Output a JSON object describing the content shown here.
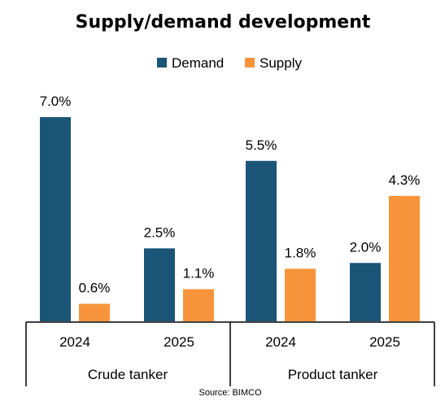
{
  "chart_data": {
    "type": "bar",
    "title": "Supply/demand development",
    "source": "Source: BIMCO",
    "groups": [
      {
        "label": "Crude tanker",
        "categories": [
          "2024",
          "2025"
        ]
      },
      {
        "label": "Product tanker",
        "categories": [
          "2024",
          "2025"
        ]
      }
    ],
    "series": [
      {
        "name": "Demand",
        "color": "#1b5577",
        "values": [
          7.0,
          2.5,
          5.5,
          2.0
        ],
        "labels": [
          "7.0%",
          "2.5%",
          "5.5%",
          "2.0%"
        ]
      },
      {
        "name": "Supply",
        "color": "#f7943b",
        "values": [
          0.6,
          1.1,
          1.8,
          4.3
        ],
        "labels": [
          "0.6%",
          "1.1%",
          "1.8%",
          "4.3%"
        ]
      }
    ],
    "ylim": [
      0,
      7.0
    ],
    "legend": "top",
    "grid": false
  }
}
